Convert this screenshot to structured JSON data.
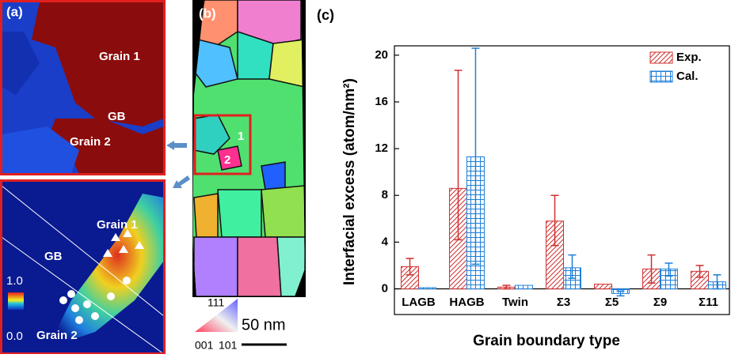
{
  "panels": {
    "a": {
      "label": "(a)",
      "top_texts": [
        "Grain 1",
        "GB",
        "Grain 2"
      ],
      "bottom_texts": [
        "Grain 1",
        "GB",
        "Grain 2"
      ],
      "colorbar_max": "1.0",
      "colorbar_min": "0.0"
    },
    "b": {
      "label": "(b)",
      "roi_labels": [
        "1",
        "2"
      ],
      "triangle_labels": [
        "111",
        "001",
        "101"
      ],
      "scale_bar": "50 nm"
    }
  },
  "chart_data": {
    "type": "bar",
    "panel_label": "(c)",
    "x_label": "Grain boundary type",
    "y_label": "Interfacial excess (atom/nm²)",
    "categories": [
      "LAGB",
      "HAGB",
      "Twin",
      "Σ3",
      "Σ5",
      "Σ9",
      "Σ11"
    ],
    "series": [
      {
        "name": "Exp.",
        "color": "#d03030",
        "hatch": "diagonal",
        "values": [
          1.9,
          8.6,
          0.15,
          5.8,
          0.4,
          1.7,
          1.5
        ],
        "error_low": [
          0.7,
          4.4,
          0.15,
          2.1,
          0,
          1.2,
          0.5
        ],
        "error_high": [
          0.7,
          10.1,
          0.15,
          2.2,
          0,
          1.2,
          0.5
        ]
      },
      {
        "name": "Cal.",
        "color": "#1f7fd8",
        "hatch": "grid",
        "values": [
          0.1,
          11.3,
          0.3,
          1.8,
          -0.4,
          1.7,
          0.6
        ],
        "error_low": [
          0,
          9.2,
          0,
          0.9,
          0.2,
          0.6,
          0.6
        ],
        "error_high": [
          0,
          9.3,
          0,
          1.1,
          0.2,
          0.5,
          0.6
        ]
      }
    ],
    "ylim": [
      -2.2,
      20.8
    ],
    "yticks": [
      0,
      4,
      8,
      12,
      16,
      20
    ],
    "legend": "upper right"
  }
}
